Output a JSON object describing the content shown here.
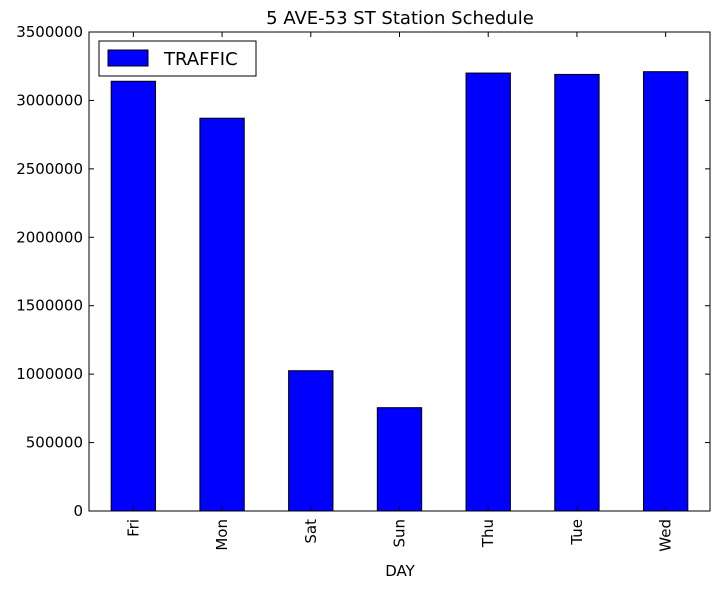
{
  "chart_data": {
    "type": "bar",
    "title": "5 AVE-53 ST Station Schedule",
    "xlabel": "DAY",
    "ylabel": "",
    "categories": [
      "Fri",
      "Mon",
      "Sat",
      "Sun",
      "Thu",
      "Tue",
      "Wed"
    ],
    "series": [
      {
        "name": "TRAFFIC",
        "values": [
          3140000,
          2870000,
          1025000,
          755000,
          3200000,
          3190000,
          3210000
        ],
        "color": "#0000ff"
      }
    ],
    "ylim": [
      0,
      3500000
    ],
    "yticks": [
      0,
      500000,
      1000000,
      1500000,
      2000000,
      2500000,
      3000000,
      3500000
    ],
    "grid": false,
    "legend": "top-left"
  }
}
